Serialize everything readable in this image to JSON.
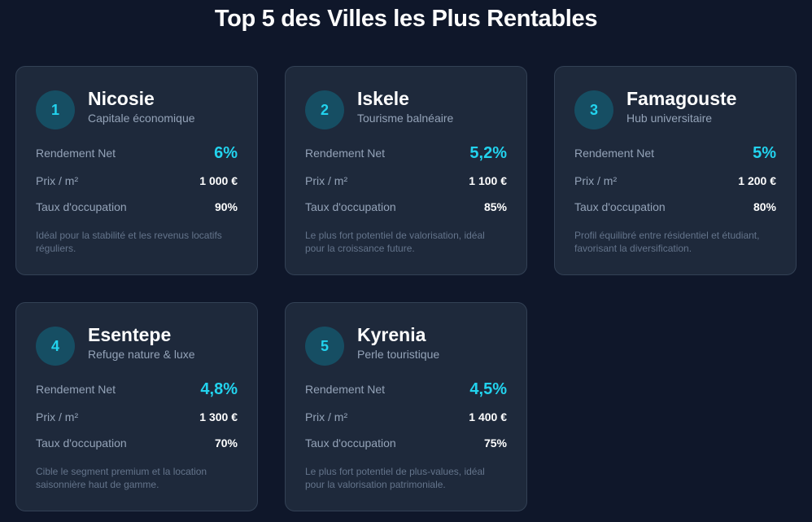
{
  "title": "Top 5 des Villes les Plus Rentables",
  "labels": {
    "yield": "Rendement Net",
    "price": "Prix / m²",
    "occupancy": "Taux d'occupation"
  },
  "colors": {
    "background": "#0f172a",
    "card": "#1e293b",
    "card_border": "#334155",
    "accent": "#22d3ee",
    "rank_bg": "#164e63",
    "muted_text": "#94a3b8",
    "desc_text": "#64748b"
  },
  "cities": [
    {
      "rank": "1",
      "name": "Nicosie",
      "subtitle": "Capitale économique",
      "yield": "6%",
      "price": "1 000 €",
      "occupancy": "90%",
      "description": "Idéal pour la stabilité et les revenus locatifs réguliers."
    },
    {
      "rank": "2",
      "name": "Iskele",
      "subtitle": "Tourisme balnéaire",
      "yield": "5,2%",
      "price": "1 100 €",
      "occupancy": "85%",
      "description": "Le plus fort potentiel de valorisation, idéal pour la croissance future."
    },
    {
      "rank": "3",
      "name": "Famagouste",
      "subtitle": "Hub universitaire",
      "yield": "5%",
      "price": "1 200 €",
      "occupancy": "80%",
      "description": "Profil équilibré entre résidentiel et étudiant, favorisant la diversification."
    },
    {
      "rank": "4",
      "name": "Esentepe",
      "subtitle": "Refuge nature & luxe",
      "yield": "4,8%",
      "price": "1 300 €",
      "occupancy": "70%",
      "description": "Cible le segment premium et la location saisonnière haut de gamme."
    },
    {
      "rank": "5",
      "name": "Kyrenia",
      "subtitle": "Perle touristique",
      "yield": "4,5%",
      "price": "1 400 €",
      "occupancy": "75%",
      "description": "Le plus fort potentiel de plus-values, idéal pour la valorisation patrimoniale."
    }
  ]
}
